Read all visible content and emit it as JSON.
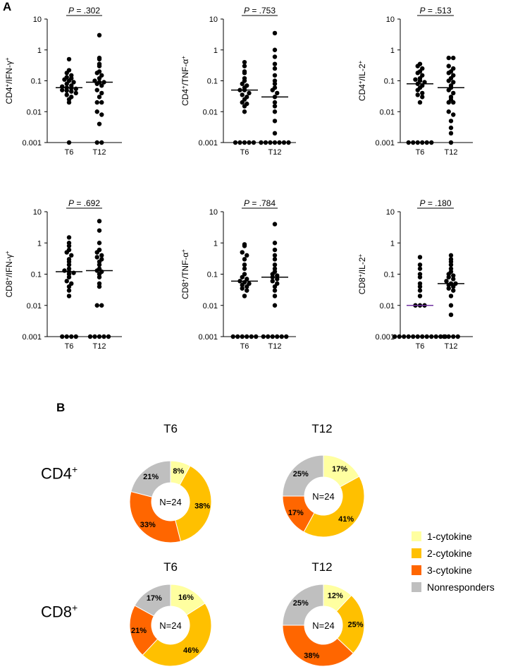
{
  "figure": {
    "panel_a_label": "A",
    "panel_b_label": "B",
    "cd4_row_label": "CD4",
    "cd8_row_label": "CD8",
    "row_sup": "+"
  },
  "chart_data": [
    {
      "type": "scatter",
      "id": "cd4-ifn",
      "ylabel": "CD4+/IFN-γ+",
      "p_value": "P = .302",
      "categories": [
        "T6",
        "T12"
      ],
      "yscale": "log",
      "ylim": [
        0.001,
        10
      ],
      "yticks": [
        "10",
        "1",
        "0.1",
        "0.01",
        "0.001"
      ],
      "groups": [
        {
          "name": "T6",
          "median": 0.06,
          "values": [
            0.5,
            0.22,
            0.18,
            0.15,
            0.13,
            0.12,
            0.11,
            0.1,
            0.09,
            0.08,
            0.07,
            0.065,
            0.06,
            0.058,
            0.055,
            0.05,
            0.048,
            0.045,
            0.04,
            0.035,
            0.03,
            0.025,
            0.02,
            0.001
          ]
        },
        {
          "name": "T12",
          "median": 0.09,
          "values": [
            3.0,
            0.55,
            0.5,
            0.35,
            0.3,
            0.2,
            0.18,
            0.15,
            0.12,
            0.1,
            0.09,
            0.09,
            0.08,
            0.07,
            0.05,
            0.04,
            0.03,
            0.02,
            0.02,
            0.01,
            0.008,
            0.004,
            0.001,
            0.001
          ]
        }
      ]
    },
    {
      "type": "scatter",
      "id": "cd4-tnf",
      "ylabel": "CD4+/TNF-α+",
      "p_value": "P = .753",
      "categories": [
        "T6",
        "T12"
      ],
      "yscale": "log",
      "ylim": [
        0.001,
        10
      ],
      "yticks": [
        "10",
        "1",
        "0.1",
        "0.01",
        "0.001"
      ],
      "groups": [
        {
          "name": "T6",
          "median": 0.05,
          "values": [
            0.4,
            0.3,
            0.2,
            0.18,
            0.12,
            0.1,
            0.08,
            0.07,
            0.06,
            0.05,
            0.05,
            0.04,
            0.035,
            0.03,
            0.025,
            0.02,
            0.018,
            0.015,
            0.01,
            0.001,
            0.001,
            0.001,
            0.001,
            0.001
          ]
        },
        {
          "name": "T12",
          "median": 0.03,
          "values": [
            3.5,
            1.0,
            0.6,
            0.35,
            0.25,
            0.15,
            0.1,
            0.08,
            0.06,
            0.05,
            0.04,
            0.03,
            0.02,
            0.015,
            0.01,
            0.005,
            0.002,
            0.001,
            0.001,
            0.001,
            0.001,
            0.001,
            0.001,
            0.001
          ]
        }
      ]
    },
    {
      "type": "scatter",
      "id": "cd4-il2",
      "ylabel": "CD4+/IL-2+",
      "p_value": "P = .513",
      "categories": [
        "T6",
        "T12"
      ],
      "yscale": "log",
      "ylim": [
        0.001,
        10
      ],
      "yticks": [
        "10",
        "1",
        "0.1",
        "0.01",
        "0.001"
      ],
      "groups": [
        {
          "name": "T6",
          "median": 0.08,
          "values": [
            0.35,
            0.3,
            0.25,
            0.2,
            0.18,
            0.15,
            0.12,
            0.11,
            0.1,
            0.09,
            0.08,
            0.07,
            0.06,
            0.05,
            0.04,
            0.035,
            0.03,
            0.02,
            0.001,
            0.001,
            0.001,
            0.001,
            0.001,
            0.001
          ]
        },
        {
          "name": "T12",
          "median": 0.06,
          "values": [
            0.55,
            0.55,
            0.3,
            0.25,
            0.2,
            0.18,
            0.15,
            0.12,
            0.1,
            0.09,
            0.07,
            0.06,
            0.05,
            0.04,
            0.03,
            0.025,
            0.02,
            0.02,
            0.01,
            0.008,
            0.005,
            0.003,
            0.002,
            0.001
          ]
        }
      ]
    },
    {
      "type": "scatter",
      "id": "cd8-ifn",
      "ylabel": "CD8+/IFN-γ+",
      "p_value": "P = .692",
      "categories": [
        "T6",
        "T12"
      ],
      "yscale": "log",
      "ylim": [
        0.001,
        10
      ],
      "yticks": [
        "10",
        "1",
        "0.1",
        "0.01",
        "0.001"
      ],
      "groups": [
        {
          "name": "T6",
          "median": 0.12,
          "values": [
            1.5,
            1.0,
            0.8,
            0.6,
            0.5,
            0.4,
            0.3,
            0.25,
            0.2,
            0.15,
            0.13,
            0.12,
            0.11,
            0.1,
            0.08,
            0.06,
            0.05,
            0.04,
            0.03,
            0.02,
            0.001,
            0.001,
            0.001,
            0.001
          ]
        },
        {
          "name": "T12",
          "median": 0.13,
          "values": [
            5.0,
            2.5,
            1.0,
            0.6,
            0.5,
            0.4,
            0.35,
            0.3,
            0.25,
            0.2,
            0.15,
            0.13,
            0.12,
            0.1,
            0.08,
            0.05,
            0.04,
            0.01,
            0.01,
            0.001,
            0.001,
            0.001,
            0.001,
            0.001
          ]
        }
      ]
    },
    {
      "type": "scatter",
      "id": "cd8-tnf",
      "ylabel": "CD8+/TNF-α+",
      "p_value": "P = .784",
      "categories": [
        "T6",
        "T12"
      ],
      "yscale": "log",
      "ylim": [
        0.001,
        10
      ],
      "yticks": [
        "10",
        "1",
        "0.1",
        "0.01",
        "0.001"
      ],
      "groups": [
        {
          "name": "T6",
          "median": 0.06,
          "values": [
            0.9,
            0.8,
            0.5,
            0.4,
            0.3,
            0.2,
            0.15,
            0.1,
            0.08,
            0.07,
            0.06,
            0.055,
            0.05,
            0.045,
            0.04,
            0.035,
            0.03,
            0.02,
            0.001,
            0.001,
            0.001,
            0.001,
            0.001,
            0.001
          ]
        },
        {
          "name": "T12",
          "median": 0.08,
          "values": [
            4.0,
            1.0,
            0.6,
            0.4,
            0.3,
            0.2,
            0.15,
            0.12,
            0.1,
            0.09,
            0.08,
            0.07,
            0.06,
            0.05,
            0.04,
            0.03,
            0.02,
            0.01,
            0.001,
            0.001,
            0.001,
            0.001,
            0.001,
            0.001
          ]
        }
      ]
    },
    {
      "type": "scatter",
      "id": "cd8-il2",
      "ylabel": "CD8+/IL-2+",
      "p_value": "P = .180",
      "categories": [
        "T6",
        "T12"
      ],
      "yscale": "log",
      "ylim": [
        0.001,
        10
      ],
      "yticks": [
        "10",
        "1",
        "0.1",
        "0.01",
        "0.001"
      ],
      "groups": [
        {
          "name": "T6",
          "median": 0.01,
          "values": [
            0.35,
            0.2,
            0.15,
            0.1,
            0.08,
            0.05,
            0.04,
            0.03,
            0.02,
            0.01,
            0.01,
            0.01,
            0.001,
            0.001,
            0.001,
            0.001,
            0.001,
            0.001,
            0.001,
            0.001,
            0.001,
            0.001,
            0.001,
            0.001
          ]
        },
        {
          "name": "T12",
          "median": 0.05,
          "values": [
            0.4,
            0.3,
            0.25,
            0.2,
            0.15,
            0.12,
            0.1,
            0.09,
            0.08,
            0.07,
            0.06,
            0.05,
            0.05,
            0.045,
            0.04,
            0.035,
            0.03,
            0.02,
            0.01,
            0.005,
            0.001,
            0.001,
            0.001,
            0.001
          ]
        }
      ]
    },
    {
      "type": "pie",
      "id": "donut-cd4-t6",
      "title": "T6",
      "center_label": "N=24",
      "slices": [
        {
          "category": "1-cytokine",
          "value": 8,
          "label": "8%"
        },
        {
          "category": "2-cytokine",
          "value": 38,
          "label": "38%"
        },
        {
          "category": "3-cytokine",
          "value": 33,
          "label": "33%"
        },
        {
          "category": "Nonresponders",
          "value": 21,
          "label": "21%"
        }
      ]
    },
    {
      "type": "pie",
      "id": "donut-cd4-t12",
      "title": "T12",
      "center_label": "N=24",
      "slices": [
        {
          "category": "1-cytokine",
          "value": 17,
          "label": "17%"
        },
        {
          "category": "2-cytokine",
          "value": 41,
          "label": "41%"
        },
        {
          "category": "3-cytokine",
          "value": 17,
          "label": "17%"
        },
        {
          "category": "Nonresponders",
          "value": 25,
          "label": "25%"
        }
      ]
    },
    {
      "type": "pie",
      "id": "donut-cd8-t6",
      "title": "T6",
      "center_label": "N=24",
      "slices": [
        {
          "category": "1-cytokine",
          "value": 16,
          "label": "16%"
        },
        {
          "category": "2-cytokine",
          "value": 46,
          "label": "46%"
        },
        {
          "category": "3-cytokine",
          "value": 21,
          "label": "21%"
        },
        {
          "category": "Nonresponders",
          "value": 17,
          "label": "17%"
        }
      ]
    },
    {
      "type": "pie",
      "id": "donut-cd8-t12",
      "title": "T12",
      "center_label": "N=24",
      "slices": [
        {
          "category": "1-cytokine",
          "value": 12,
          "label": "12%"
        },
        {
          "category": "2-cytokine",
          "value": 25,
          "label": "25%"
        },
        {
          "category": "3-cytokine",
          "value": 38,
          "label": "38%"
        },
        {
          "category": "Nonresponders",
          "value": 25,
          "label": "25%"
        }
      ]
    }
  ],
  "legend": {
    "items": [
      {
        "label": "1-cytokine",
        "color": "#FFFFA0"
      },
      {
        "label": "2-cytokine",
        "color": "#FFC000"
      },
      {
        "label": "3-cytokine",
        "color": "#FF6600"
      },
      {
        "label": "Nonresponders",
        "color": "#BFBFBF"
      }
    ]
  },
  "colors": {
    "median_line_default": "#000000",
    "median_line_cd8_il2_t6": "#7030A0",
    "dot": "#000000"
  }
}
